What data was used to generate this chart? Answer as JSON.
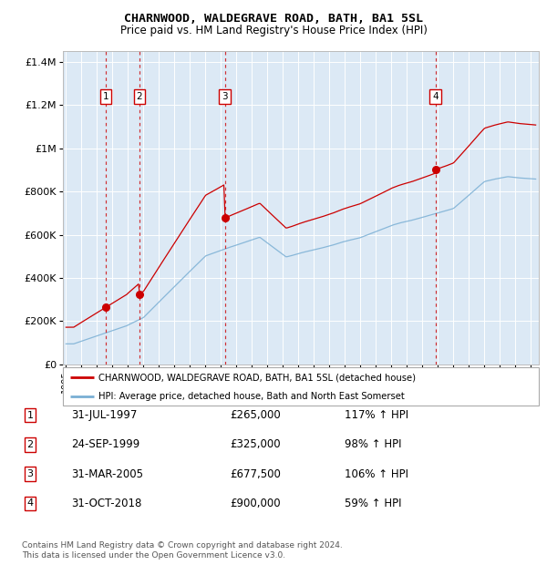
{
  "title": "CHARNWOOD, WALDEGRAVE ROAD, BATH, BA1 5SL",
  "subtitle": "Price paid vs. HM Land Registry's House Price Index (HPI)",
  "background_color": "#dce9f5",
  "plot_bg_color": "#dce9f5",
  "sales": [
    {
      "date_num": 1997.58,
      "price": 265000,
      "label": "1"
    },
    {
      "date_num": 1999.73,
      "price": 325000,
      "label": "2"
    },
    {
      "date_num": 2005.25,
      "price": 677500,
      "label": "3"
    },
    {
      "date_num": 2018.83,
      "price": 900000,
      "label": "4"
    }
  ],
  "sale_color": "#cc0000",
  "hpi_color": "#7aafd4",
  "red_line_color": "#cc0000",
  "dashed_color": "#cc0000",
  "ylabel_values": [
    "£0",
    "£200K",
    "£400K",
    "£600K",
    "£800K",
    "£1M",
    "£1.2M",
    "£1.4M"
  ],
  "ylim": [
    0,
    1450000
  ],
  "yticks": [
    0,
    200000,
    400000,
    600000,
    800000,
    1000000,
    1200000,
    1400000
  ],
  "xmin": 1994.8,
  "xmax": 2025.5,
  "xticks": [
    1995,
    1996,
    1997,
    1998,
    1999,
    2000,
    2001,
    2002,
    2003,
    2004,
    2005,
    2006,
    2007,
    2008,
    2009,
    2010,
    2011,
    2012,
    2013,
    2014,
    2015,
    2016,
    2017,
    2018,
    2019,
    2020,
    2021,
    2022,
    2023,
    2024,
    2025
  ],
  "legend_red_label": "CHARNWOOD, WALDEGRAVE ROAD, BATH, BA1 5SL (detached house)",
  "legend_blue_label": "HPI: Average price, detached house, Bath and North East Somerset",
  "table_rows": [
    {
      "num": "1",
      "date": "31-JUL-1997",
      "price": "£265,000",
      "hpi": "117% ↑ HPI"
    },
    {
      "num": "2",
      "date": "24-SEP-1999",
      "price": "£325,000",
      "hpi": "98% ↑ HPI"
    },
    {
      "num": "3",
      "date": "31-MAR-2005",
      "price": "£677,500",
      "hpi": "106% ↑ HPI"
    },
    {
      "num": "4",
      "date": "31-OCT-2018",
      "price": "£900,000",
      "hpi": "59% ↑ HPI"
    }
  ],
  "footer": "Contains HM Land Registry data © Crown copyright and database right 2024.\nThis data is licensed under the Open Government Licence v3.0."
}
